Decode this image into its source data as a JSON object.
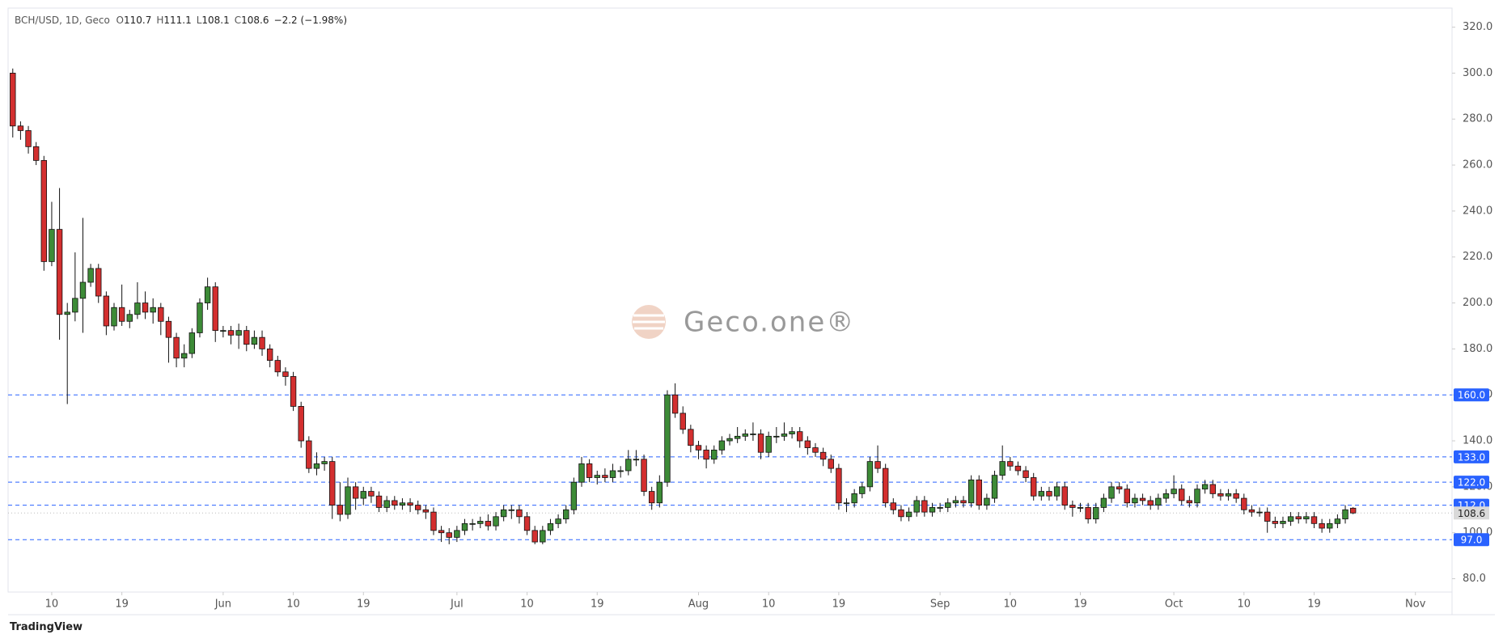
{
  "chart_data": {
    "type": "candlestick",
    "title": "BCH/USD, 1D, Geco",
    "ohlc_labels": [
      "O",
      "H",
      "L",
      "C"
    ],
    "change": "−2.2 (−1.98%)",
    "watermark": "Geco.one®",
    "footer": "TradingView",
    "colors": {
      "up": "#3d8b37",
      "down": "#d32f2f",
      "level": "#2962ff"
    },
    "xlim": [
      -0.6,
      184.7
    ],
    "ylim": [
      74.2,
      328.3
    ],
    "xticks": [
      {
        "value": 5,
        "label": "10"
      },
      {
        "value": 14,
        "label": "19"
      },
      {
        "value": 27,
        "label": "Jun"
      },
      {
        "value": 36,
        "label": "10"
      },
      {
        "value": 45,
        "label": "19"
      },
      {
        "value": 57,
        "label": "Jul"
      },
      {
        "value": 66,
        "label": "10"
      },
      {
        "value": 75,
        "label": "19"
      },
      {
        "value": 88,
        "label": "Aug"
      },
      {
        "value": 97,
        "label": "10"
      },
      {
        "value": 106,
        "label": "19"
      },
      {
        "value": 119,
        "label": "Sep"
      },
      {
        "value": 128,
        "label": "10"
      },
      {
        "value": 137,
        "label": "19"
      },
      {
        "value": 149,
        "label": "Oct"
      },
      {
        "value": 158,
        "label": "10"
      },
      {
        "value": 167,
        "label": "19"
      },
      {
        "value": 180,
        "label": "Nov"
      }
    ],
    "yticks": [
      {
        "value": 80,
        "label": "80.0"
      },
      {
        "value": 100,
        "label": "100.0"
      },
      {
        "value": 120,
        "label": "120.0"
      },
      {
        "value": 140,
        "label": "140.0"
      },
      {
        "value": 160,
        "label": "160.0"
      },
      {
        "value": 180,
        "label": "180.0"
      },
      {
        "value": 200,
        "label": "200.0"
      },
      {
        "value": 220,
        "label": "220.0"
      },
      {
        "value": 240,
        "label": "240.0"
      },
      {
        "value": 260,
        "label": "260.0"
      },
      {
        "value": 280,
        "label": "280.0"
      },
      {
        "value": 300,
        "label": "300.0"
      },
      {
        "value": 320,
        "label": "320.0"
      }
    ],
    "levels": [
      {
        "value": 160,
        "label": "160.0"
      },
      {
        "value": 133,
        "label": "133.0"
      },
      {
        "value": 122,
        "label": "122.0"
      },
      {
        "value": 112,
        "label": "112.0"
      },
      {
        "value": 97,
        "label": "97.0"
      }
    ],
    "open": [
      300,
      277,
      275,
      268,
      262,
      218,
      232,
      195,
      196,
      202,
      209,
      215,
      203,
      190,
      198,
      192,
      195,
      200,
      196,
      198,
      192,
      185,
      176,
      178,
      187,
      200,
      207,
      188,
      188,
      186,
      188,
      182,
      185,
      180,
      175,
      170,
      168,
      155,
      140,
      128,
      130,
      131,
      112,
      108,
      120,
      115,
      118,
      116,
      111,
      114,
      112,
      113,
      112,
      110,
      109,
      101,
      100,
      98,
      101,
      104,
      104,
      105,
      103,
      107,
      110,
      110,
      107,
      101,
      96,
      101,
      104,
      106,
      110,
      122,
      130,
      124,
      125,
      124,
      127,
      127,
      132,
      132,
      118,
      113,
      122,
      160,
      152,
      145,
      138,
      136,
      132,
      136,
      140,
      141,
      142,
      143,
      143,
      135,
      142,
      142,
      143,
      144,
      140,
      137,
      135,
      132,
      128,
      113,
      113,
      117,
      120,
      131,
      128,
      113,
      110,
      107,
      109,
      114,
      109,
      111,
      111,
      113,
      114,
      113,
      123,
      112,
      115,
      125,
      131,
      129,
      127,
      124,
      116,
      118,
      116,
      120,
      112,
      111,
      111,
      106,
      111,
      115,
      120,
      119,
      113,
      115,
      114,
      112,
      115,
      117,
      119,
      114,
      113,
      119,
      121,
      117,
      116,
      117,
      115,
      110,
      109,
      109,
      105,
      104,
      105,
      107,
      106,
      107,
      104,
      102,
      104,
      106,
      110.7
    ],
    "high": [
      302,
      279,
      277,
      270,
      264,
      244,
      250,
      200,
      222,
      237,
      217,
      217,
      205,
      200,
      208,
      197,
      209,
      205,
      202,
      200,
      194,
      187,
      182,
      189,
      202,
      211,
      209,
      190,
      190,
      191,
      190,
      188,
      188,
      182,
      177,
      172,
      170,
      157,
      142,
      135,
      133,
      133,
      122,
      124,
      122,
      120,
      120,
      118,
      116,
      116,
      115,
      115,
      114,
      112,
      111,
      103,
      102,
      103,
      106,
      106,
      107,
      108,
      109,
      112,
      112,
      112,
      109,
      103,
      103,
      106,
      108,
      112,
      124,
      133,
      132,
      127,
      128,
      130,
      129,
      136,
      136,
      134,
      120,
      125,
      162,
      165,
      155,
      147,
      140,
      138,
      138,
      142,
      143,
      146,
      145,
      148,
      145,
      144,
      146,
      148,
      146,
      146,
      142,
      139,
      137,
      134,
      130,
      115,
      119,
      122,
      133,
      138,
      130,
      115,
      112,
      111,
      116,
      116,
      113,
      113,
      115,
      116,
      116,
      125,
      125,
      117,
      127,
      138,
      133,
      131,
      129,
      126,
      120,
      120,
      122,
      122,
      114,
      113,
      113,
      113,
      117,
      122,
      122,
      121,
      117,
      117,
      116,
      117,
      119,
      125,
      121,
      116,
      121,
      123,
      123,
      119,
      119,
      119,
      117,
      112,
      111,
      111,
      107,
      107,
      109,
      109,
      109,
      109,
      106,
      106,
      108,
      112,
      111.1
    ],
    "low": [
      272,
      271,
      265,
      260,
      214,
      216,
      184,
      156,
      192,
      187,
      207,
      200,
      186,
      188,
      190,
      189,
      193,
      193,
      191,
      186,
      174,
      172,
      172,
      176,
      185,
      197,
      183,
      185,
      182,
      180,
      179,
      180,
      177,
      172,
      168,
      164,
      153,
      137,
      126,
      125,
      127,
      106,
      105,
      106,
      110,
      112,
      113,
      109,
      109,
      110,
      110,
      109,
      108,
      106,
      99,
      96,
      95,
      96,
      99,
      101,
      102,
      101,
      101,
      105,
      106,
      104,
      99,
      95,
      95,
      99,
      102,
      104,
      108,
      120,
      122,
      121,
      122,
      122,
      124,
      125,
      129,
      116,
      110,
      111,
      120,
      150,
      143,
      135,
      132,
      128,
      130,
      134,
      138,
      139,
      140,
      140,
      132,
      133,
      139,
      140,
      141,
      137,
      134,
      133,
      129,
      126,
      110,
      109,
      111,
      115,
      118,
      126,
      111,
      108,
      105,
      105,
      107,
      107,
      107,
      109,
      109,
      111,
      111,
      111,
      110,
      110,
      113,
      123,
      127,
      125,
      122,
      114,
      114,
      114,
      114,
      110,
      107,
      109,
      104,
      104,
      109,
      113,
      117,
      111,
      111,
      112,
      110,
      110,
      113,
      115,
      112,
      111,
      111,
      117,
      115,
      114,
      114,
      113,
      108,
      107,
      107,
      100,
      102,
      102,
      103,
      104,
      104,
      102,
      100,
      100,
      102,
      104,
      108.1
    ],
    "close": [
      277,
      275,
      268,
      262,
      218,
      232,
      195,
      196,
      202,
      209,
      215,
      203,
      190,
      198,
      192,
      195,
      200,
      196,
      198,
      192,
      185,
      176,
      178,
      187,
      200,
      207,
      188,
      188,
      186,
      188,
      182,
      185,
      180,
      175,
      170,
      168,
      155,
      140,
      128,
      130,
      131,
      112,
      108,
      120,
      115,
      118,
      116,
      111,
      114,
      112,
      113,
      112,
      110,
      109,
      101,
      100,
      98,
      101,
      104,
      104,
      105,
      103,
      107,
      110,
      110,
      107,
      101,
      96,
      101,
      104,
      106,
      110,
      122,
      130,
      124,
      125,
      124,
      127,
      127,
      132,
      132,
      118,
      113,
      122,
      160,
      152,
      145,
      138,
      136,
      132,
      136,
      140,
      141,
      142,
      143,
      143,
      135,
      142,
      142,
      143,
      144,
      140,
      137,
      135,
      132,
      128,
      113,
      113,
      117,
      120,
      131,
      128,
      113,
      110,
      107,
      109,
      114,
      109,
      111,
      111,
      113,
      114,
      113,
      123,
      112,
      115,
      125,
      131,
      129,
      127,
      124,
      116,
      118,
      116,
      120,
      112,
      111,
      111,
      106,
      111,
      115,
      120,
      119,
      113,
      115,
      114,
      112,
      115,
      117,
      119,
      114,
      113,
      119,
      121,
      117,
      116,
      117,
      115,
      110,
      109,
      109,
      105,
      104,
      105,
      107,
      106,
      107,
      104,
      102,
      104,
      106,
      110,
      108.6
    ]
  }
}
